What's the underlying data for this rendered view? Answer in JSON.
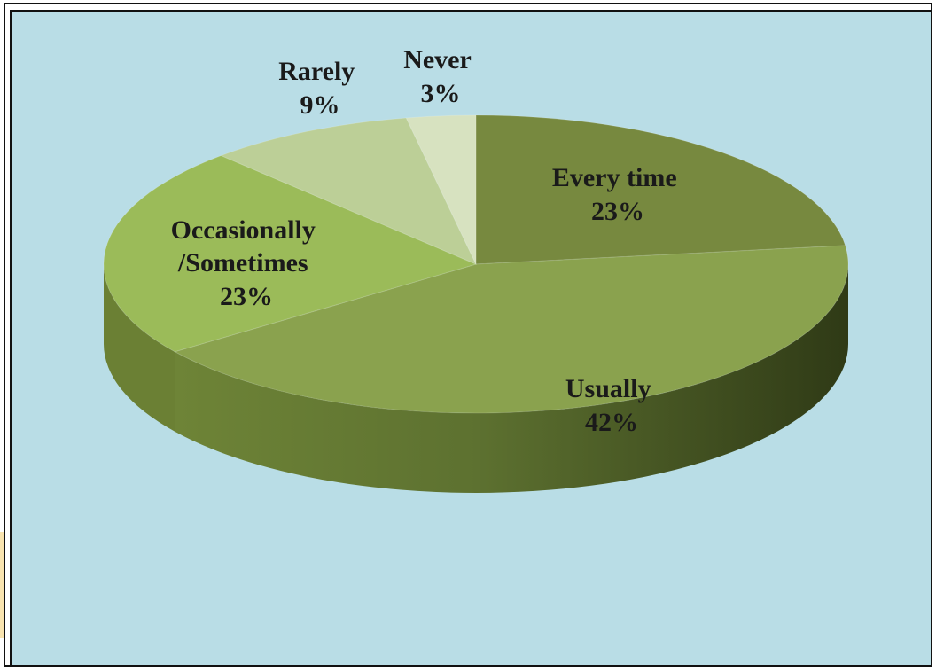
{
  "chart_data": {
    "type": "pie",
    "title": "",
    "categories": [
      "Every time",
      "Usually",
      "Occasionally/Sometimes",
      "Rarely",
      "Never"
    ],
    "values": [
      23,
      42,
      23,
      9,
      3
    ],
    "value_format": "percent",
    "label_lines": [
      [
        "Every time",
        "23%"
      ],
      [
        "Usually",
        "42%"
      ],
      [
        "Occasionally",
        "/Sometimes",
        "23%"
      ],
      [
        "Rarely",
        "9%"
      ],
      [
        "Never",
        "3%"
      ]
    ],
    "colors": [
      "#77893f",
      "#8aa24e",
      "#9bbb59",
      "#bccf97",
      "#d7e2c0"
    ],
    "side_colors": [
      "#4e5d24",
      "#5c7030",
      "#6b8034",
      "#7d8f5a",
      "#8f9a78"
    ],
    "style": "3d-pie",
    "legend": "none",
    "background": "#b9dde6"
  }
}
